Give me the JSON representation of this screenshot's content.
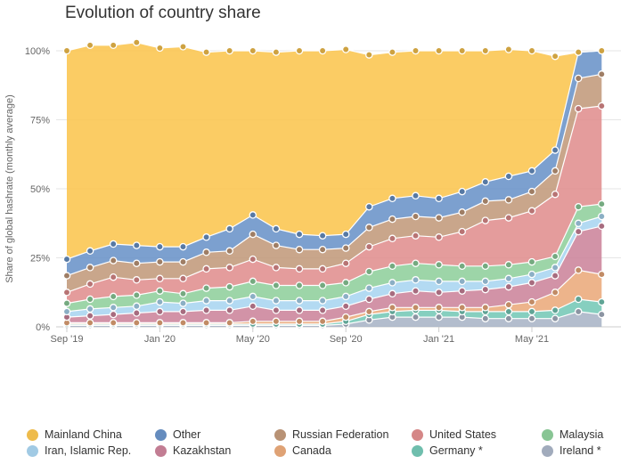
{
  "title": "Evolution of country share",
  "chart_data": {
    "type": "area",
    "stacked": true,
    "title": "Evolution of country share",
    "ylabel": "Share of global hashrate (monthly average)",
    "xlabel": "",
    "ylim": [
      0,
      100
    ],
    "y_ticks": [
      "0%",
      "25%",
      "50%",
      "75%",
      "100%"
    ],
    "x": [
      "2019-09",
      "2019-10",
      "2019-11",
      "2019-12",
      "2020-01",
      "2020-02",
      "2020-03",
      "2020-04",
      "2020-05",
      "2020-06",
      "2020-07",
      "2020-08",
      "2020-09",
      "2020-10",
      "2020-11",
      "2020-12",
      "2021-01",
      "2021-02",
      "2021-03",
      "2021-04",
      "2021-05",
      "2021-06",
      "2021-07",
      "2021-08"
    ],
    "x_tick_labels": [
      "Sep '19",
      "Jan '20",
      "May '20",
      "Sep '20",
      "Jan '21",
      "May '21"
    ],
    "grid": true,
    "legend_position": "bottom",
    "series": [
      {
        "name": "Ireland *",
        "color": "#a9b4c6",
        "values": [
          0.5,
          0.5,
          0.5,
          0.5,
          0.5,
          0.5,
          0.5,
          0.5,
          0.5,
          0.5,
          0.5,
          0.5,
          1.0,
          2.5,
          3.5,
          3.5,
          3.5,
          3.5,
          3.0,
          3.0,
          3.0,
          3.0,
          5.5,
          4.5
        ]
      },
      {
        "name": "Germany *",
        "color": "#75c8b6",
        "values": [
          0.5,
          0.5,
          0.5,
          0.5,
          0.5,
          0.5,
          0.5,
          0.5,
          0.5,
          0.5,
          0.5,
          0.5,
          1.0,
          2.0,
          2.0,
          2.5,
          2.5,
          2.0,
          2.5,
          2.5,
          2.5,
          3.0,
          4.5,
          4.5
        ]
      },
      {
        "name": "Canada",
        "color": "#ebaa7b",
        "values": [
          0.5,
          0.5,
          0.5,
          0.5,
          0.5,
          0.5,
          0.5,
          0.5,
          1.0,
          1.0,
          1.0,
          1.0,
          1.5,
          1.0,
          1.5,
          1.0,
          1.0,
          1.5,
          1.5,
          2.5,
          3.5,
          6.5,
          10.5,
          10.0
        ]
      },
      {
        "name": "Kazakhstan",
        "color": "#cc849b",
        "values": [
          2.0,
          2.5,
          3.0,
          3.5,
          4.0,
          4.0,
          4.5,
          4.5,
          5.5,
          4.0,
          4.0,
          4.0,
          4.0,
          4.5,
          5.0,
          6.0,
          5.5,
          6.0,
          6.5,
          6.5,
          7.0,
          6.0,
          14.0,
          17.5
        ]
      },
      {
        "name": "Iran, Islamic Rep.",
        "color": "#a9d5f0",
        "values": [
          2.0,
          2.5,
          2.5,
          2.5,
          3.5,
          3.0,
          3.5,
          3.5,
          3.5,
          3.5,
          3.5,
          3.5,
          3.5,
          4.0,
          4.0,
          4.0,
          4.0,
          3.5,
          3.0,
          3.0,
          3.0,
          3.0,
          3.0,
          3.5
        ]
      },
      {
        "name": "Malaysia",
        "color": "#8fcf9c",
        "values": [
          3.0,
          3.5,
          4.0,
          4.0,
          4.0,
          3.5,
          4.5,
          5.0,
          5.5,
          5.5,
          5.5,
          5.5,
          5.0,
          6.0,
          6.0,
          6.0,
          6.0,
          5.5,
          5.5,
          5.0,
          4.5,
          4.0,
          6.0,
          4.5
        ]
      },
      {
        "name": "United States",
        "color": "#e08e8e",
        "values": [
          4.0,
          5.5,
          7.0,
          5.5,
          4.5,
          5.5,
          7.0,
          7.0,
          8.0,
          6.5,
          6.0,
          6.0,
          7.0,
          9.0,
          10.0,
          10.0,
          10.0,
          12.5,
          16.5,
          17.0,
          18.5,
          22.5,
          35.5,
          35.5
        ]
      },
      {
        "name": "Russian Federation",
        "color": "#c29a7b",
        "values": [
          6.0,
          6.0,
          6.0,
          6.0,
          6.0,
          6.0,
          6.0,
          6.0,
          9.0,
          8.0,
          7.0,
          7.0,
          5.5,
          7.0,
          7.0,
          7.0,
          7.0,
          7.0,
          7.0,
          6.5,
          7.0,
          8.5,
          11.0,
          11.5
        ]
      },
      {
        "name": "Other",
        "color": "#6a93c8",
        "values": [
          6.0,
          6.0,
          6.0,
          6.5,
          5.5,
          5.5,
          5.5,
          8.0,
          7.0,
          6.0,
          5.5,
          5.0,
          5.0,
          7.5,
          7.5,
          7.5,
          7.0,
          7.5,
          7.0,
          8.5,
          7.5,
          7.5,
          9.5,
          8.5
        ]
      },
      {
        "name": "Mainland China",
        "color": "#fbc54f",
        "values": [
          75.5,
          74.5,
          72.0,
          73.5,
          72.0,
          72.5,
          67.0,
          64.5,
          59.5,
          64.0,
          66.5,
          67.0,
          67.0,
          55.0,
          53.0,
          52.5,
          53.5,
          51.0,
          47.5,
          46.0,
          43.5,
          34.0,
          0.0,
          0.0
        ]
      }
    ],
    "legend_order": [
      "Mainland China",
      "Other",
      "Russian Federation",
      "United States",
      "Malaysia",
      "Iran, Islamic Rep.",
      "Kazakhstan",
      "Canada",
      "Germany *",
      "Ireland *"
    ]
  }
}
